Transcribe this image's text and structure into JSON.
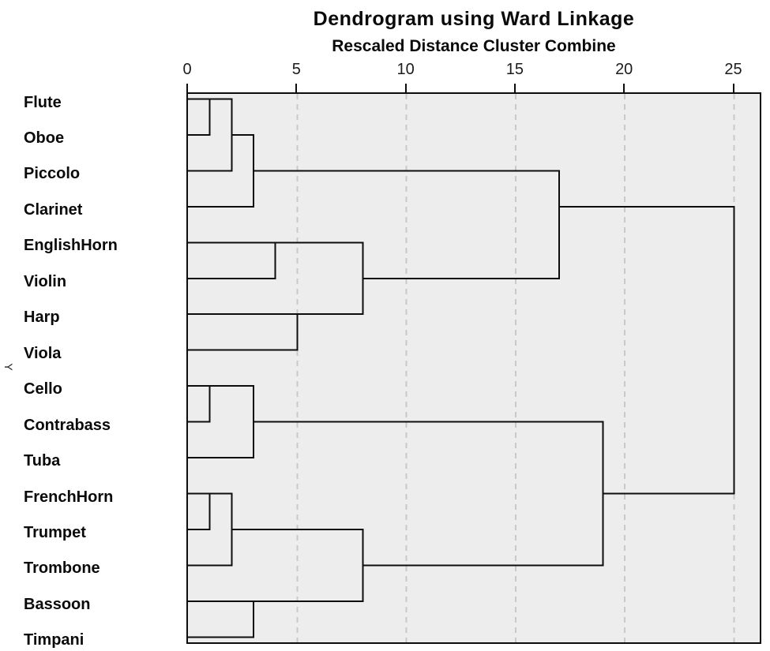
{
  "header": {
    "title": "Dendrogram using Ward Linkage",
    "subtitle": "Rescaled Distance Cluster Combine"
  },
  "axis": {
    "y_axis_label": "Y"
  },
  "colors": {
    "plot_background": "#ededed",
    "dendrogram_line": "#0d0d0d",
    "grid_line": "#c9c9c9",
    "text": "#0a0a0a"
  },
  "chart_data": {
    "type": "dendrogram",
    "orientation": "horizontal",
    "title": "Dendrogram using Ward Linkage",
    "subtitle": "Rescaled Distance Cluster Combine",
    "x_ticks": [
      0,
      5,
      10,
      15,
      20,
      25
    ],
    "x_range": [
      0,
      26.3
    ],
    "grid": "dashed vertical lines at x ticks",
    "legend": "none",
    "leaves": [
      "Flute",
      "Oboe",
      "Piccolo",
      "Clarinet",
      "EnglishHorn",
      "Violin",
      "Harp",
      "Viola",
      "Cello",
      "Contrabass",
      "Tuba",
      "FrenchHorn",
      "Trumpet",
      "Trombone",
      "Bassoon",
      "Timpani"
    ],
    "merges": [
      {
        "members": [
          "Flute",
          "Oboe"
        ],
        "distance": 1
      },
      {
        "members": [
          "Flute",
          "Oboe",
          "Piccolo"
        ],
        "distance": 2
      },
      {
        "members": [
          "Flute",
          "Oboe",
          "Piccolo",
          "Clarinet"
        ],
        "distance": 3
      },
      {
        "members": [
          "EnglishHorn",
          "Violin"
        ],
        "distance": 4
      },
      {
        "members": [
          "Harp",
          "Viola"
        ],
        "distance": 5
      },
      {
        "members": [
          "EnglishHorn",
          "Violin",
          "Harp",
          "Viola"
        ],
        "distance": 8
      },
      {
        "members": [
          "Flute",
          "Oboe",
          "Piccolo",
          "Clarinet",
          "EnglishHorn",
          "Violin",
          "Harp",
          "Viola"
        ],
        "distance": 17
      },
      {
        "members": [
          "Cello",
          "Contrabass"
        ],
        "distance": 1
      },
      {
        "members": [
          "Cello",
          "Contrabass",
          "Tuba"
        ],
        "distance": 3
      },
      {
        "members": [
          "FrenchHorn",
          "Trumpet"
        ],
        "distance": 1
      },
      {
        "members": [
          "FrenchHorn",
          "Trumpet",
          "Trombone"
        ],
        "distance": 2
      },
      {
        "members": [
          "Bassoon",
          "Timpani"
        ],
        "distance": 3
      },
      {
        "members": [
          "FrenchHorn",
          "Trumpet",
          "Trombone",
          "Bassoon",
          "Timpani"
        ],
        "distance": 8
      },
      {
        "members": [
          "Cello",
          "Contrabass",
          "Tuba",
          "FrenchHorn",
          "Trumpet",
          "Trombone",
          "Bassoon",
          "Timpani"
        ],
        "distance": 19
      },
      {
        "members": [
          "all 16 instruments"
        ],
        "distance": 25
      }
    ],
    "segments_h": [
      {
        "r": 0,
        "x1": 0,
        "x2": 2
      },
      {
        "r": 1,
        "x1": 0,
        "x2": 1
      },
      {
        "r": 2,
        "x1": 0,
        "x2": 2
      },
      {
        "r": 1,
        "x1": 2,
        "x2": 3
      },
      {
        "r": 3,
        "x1": 0,
        "x2": 3
      },
      {
        "r": 2,
        "x1": 3,
        "x2": 17
      },
      {
        "r": 4,
        "x1": 0,
        "x2": 8
      },
      {
        "r": 5,
        "x1": 0,
        "x2": 4
      },
      {
        "r": 6,
        "x1": 0,
        "x2": 8
      },
      {
        "r": 7,
        "x1": 0,
        "x2": 5
      },
      {
        "r": 5,
        "x1": 8,
        "x2": 17
      },
      {
        "r": 3,
        "x1": 17,
        "x2": 25
      },
      {
        "r": 8,
        "x1": 0,
        "x2": 3
      },
      {
        "r": 9,
        "x1": 0,
        "x2": 1
      },
      {
        "r": 10,
        "x1": 0,
        "x2": 3
      },
      {
        "r": 9,
        "x1": 3,
        "x2": 19
      },
      {
        "r": 11,
        "x1": 0,
        "x2": 2
      },
      {
        "r": 12,
        "x1": 0,
        "x2": 1
      },
      {
        "r": 13,
        "x1": 0,
        "x2": 2
      },
      {
        "r": 12,
        "x1": 2,
        "x2": 8
      },
      {
        "r": 14,
        "x1": 0,
        "x2": 8
      },
      {
        "r": 15,
        "x1": 0,
        "x2": 3
      },
      {
        "r": 13,
        "x1": 8,
        "x2": 19
      },
      {
        "r": 11,
        "x1": 19,
        "x2": 25
      }
    ],
    "segments_v": [
      {
        "x": 1,
        "r1": 0,
        "r2": 1
      },
      {
        "x": 2,
        "r1": 0,
        "r2": 2
      },
      {
        "x": 3,
        "r1": 1,
        "r2": 3
      },
      {
        "x": 4,
        "r1": 4,
        "r2": 5
      },
      {
        "x": 5,
        "r1": 6,
        "r2": 7
      },
      {
        "x": 8,
        "r1": 4,
        "r2": 6
      },
      {
        "x": 17,
        "r1": 2,
        "r2": 5
      },
      {
        "x": 1,
        "r1": 8,
        "r2": 9
      },
      {
        "x": 3,
        "r1": 8,
        "r2": 10
      },
      {
        "x": 1,
        "r1": 11,
        "r2": 12
      },
      {
        "x": 2,
        "r1": 11,
        "r2": 13
      },
      {
        "x": 3,
        "r1": 14,
        "r2": 15
      },
      {
        "x": 8,
        "r1": 12,
        "r2": 14
      },
      {
        "x": 19,
        "r1": 9,
        "r2": 13
      },
      {
        "x": 25,
        "r1": 3,
        "r2": 11
      }
    ]
  }
}
